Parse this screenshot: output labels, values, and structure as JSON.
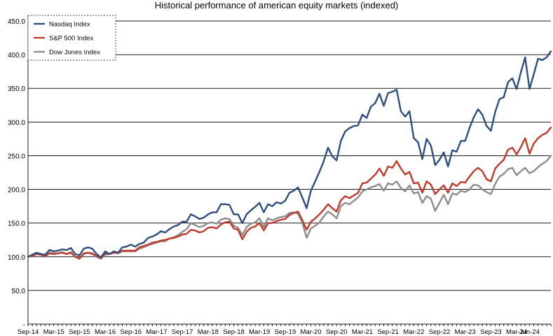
{
  "chart_data": {
    "type": "line",
    "title": "Historical performance of american equity markets (indexed)",
    "xlabel": "",
    "ylabel": "",
    "ylim": [
      0,
      450
    ],
    "yticks": [
      "-",
      "50.0",
      "100.0",
      "150.0",
      "200.0",
      "250.0",
      "300.0",
      "350.0",
      "400.0",
      "450.0"
    ],
    "xtick_labels": [
      "Sep-14",
      "Mar-15",
      "Sep-15",
      "Mar-16",
      "Sep-16",
      "Mar-17",
      "Sep-17",
      "Mar-18",
      "Sep-18",
      "Mar-19",
      "Sep-19",
      "Mar-20",
      "Sep-20",
      "Mar-21",
      "Sep-21",
      "Mar-22",
      "Sep-22",
      "Mar-23",
      "Sep-23",
      "Mar-24",
      "Jun-24"
    ],
    "xtick_month_index": [
      0,
      6,
      12,
      18,
      24,
      30,
      36,
      42,
      48,
      54,
      60,
      66,
      72,
      78,
      84,
      90,
      96,
      102,
      108,
      114,
      117
    ],
    "grid": "horizontal",
    "legend_position": "top-left",
    "series": [
      {
        "name": "Nasdaq Index",
        "color": "#2e4e7e",
        "values": [
          100,
          103,
          106,
          104,
          103,
          110,
          108,
          109,
          111,
          110,
          113,
          104,
          102,
          112,
          114,
          112,
          104,
          99,
          108,
          104,
          108,
          106,
          114,
          115,
          118,
          115,
          119,
          121,
          128,
          130,
          133,
          138,
          136,
          141,
          145,
          147,
          152,
          152,
          163,
          160,
          156,
          158,
          163,
          166,
          166,
          178,
          178,
          177,
          163,
          163,
          150,
          163,
          169,
          174,
          180,
          166,
          178,
          175,
          181,
          179,
          183,
          195,
          198,
          203,
          188,
          172,
          198,
          212,
          226,
          242,
          262,
          249,
          243,
          272,
          286,
          291,
          294,
          295,
          311,
          306,
          323,
          328,
          342,
          324,
          343,
          345,
          348,
          316,
          308,
          316,
          276,
          270,
          245,
          275,
          265,
          236,
          244,
          255,
          234,
          258,
          256,
          272,
          272,
          291,
          307,
          319,
          311,
          294,
          287,
          315,
          334,
          337,
          359,
          365,
          349,
          374,
          396,
          349,
          371,
          394,
          392,
          396,
          405
        ]
      },
      {
        "name": "S&P 500 Index",
        "color": "#c0392b",
        "values": [
          100,
          101,
          104,
          103,
          101,
          105,
          104,
          105,
          106,
          104,
          106,
          100,
          97,
          105,
          106,
          105,
          101,
          98,
          105,
          104,
          106,
          106,
          109,
          109,
          109,
          109,
          114,
          116,
          118,
          121,
          122,
          124,
          125,
          127,
          128,
          130,
          133,
          134,
          140,
          139,
          136,
          138,
          143,
          144,
          142,
          148,
          151,
          152,
          142,
          140,
          126,
          137,
          143,
          145,
          150,
          139,
          150,
          150,
          153,
          155,
          156,
          162,
          165,
          167,
          154,
          140,
          152,
          157,
          163,
          170,
          178,
          172,
          167,
          184,
          190,
          187,
          191,
          195,
          209,
          210,
          216,
          222,
          231,
          220,
          234,
          232,
          242,
          231,
          222,
          226,
          209,
          210,
          195,
          212,
          207,
          193,
          200,
          206,
          195,
          209,
          205,
          211,
          210,
          219,
          227,
          232,
          227,
          215,
          212,
          231,
          238,
          244,
          259,
          262,
          252,
          263,
          276,
          253,
          268,
          276,
          281,
          284,
          292
        ]
      },
      {
        "name": "Dow Jones Index",
        "color": "#8c8c8c",
        "values": [
          100,
          102,
          106,
          104,
          100,
          106,
          105,
          105,
          107,
          104,
          107,
          100,
          97,
          104,
          106,
          104,
          100,
          97,
          103,
          104,
          106,
          105,
          108,
          108,
          108,
          108,
          112,
          114,
          117,
          119,
          121,
          123,
          123,
          127,
          129,
          132,
          137,
          141,
          150,
          147,
          144,
          146,
          150,
          151,
          149,
          155,
          157,
          156,
          146,
          143,
          132,
          144,
          149,
          151,
          157,
          144,
          157,
          154,
          157,
          159,
          160,
          165,
          166,
          164,
          151,
          128,
          142,
          146,
          151,
          160,
          167,
          163,
          157,
          175,
          180,
          178,
          183,
          188,
          197,
          200,
          203,
          205,
          208,
          198,
          209,
          207,
          212,
          202,
          197,
          206,
          194,
          196,
          180,
          190,
          186,
          168,
          180,
          192,
          178,
          194,
          192,
          198,
          196,
          200,
          207,
          206,
          200,
          196,
          193,
          208,
          219,
          223,
          230,
          232,
          221,
          227,
          232,
          224,
          227,
          233,
          238,
          242,
          250
        ]
      }
    ]
  }
}
